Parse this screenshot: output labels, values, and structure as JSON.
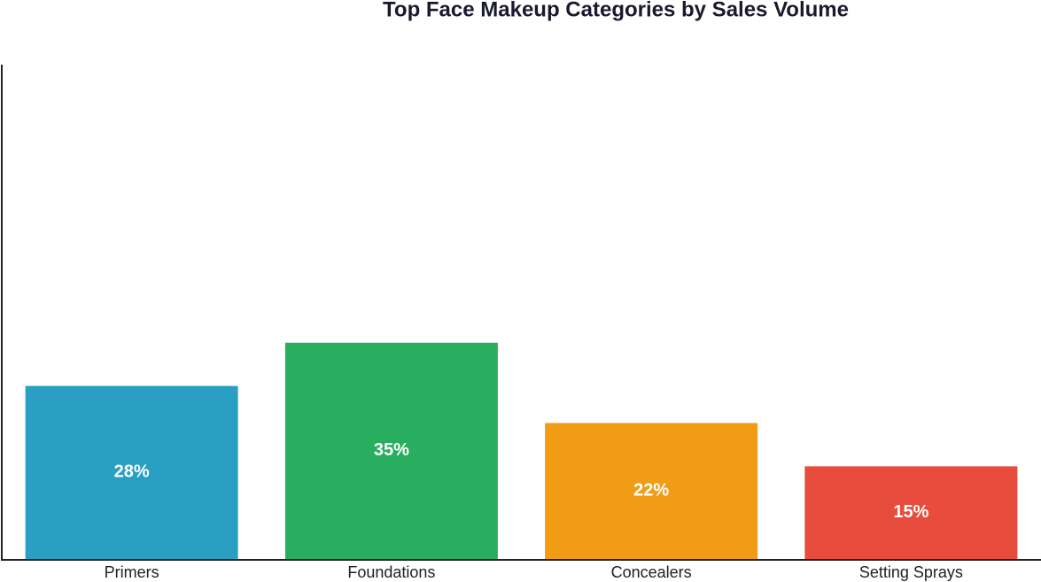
{
  "chart_data": {
    "type": "bar",
    "title": "Top Face Makeup Categories by Sales Volume",
    "categories": [
      "Primers",
      "Foundations",
      "Concealers",
      "Setting Sprays"
    ],
    "values": [
      28,
      35,
      22,
      15
    ],
    "value_labels": [
      "28%",
      "35%",
      "22%",
      "15%"
    ],
    "colors": [
      "#2b9fc3",
      "#29ae60",
      "#f19c15",
      "#e74c3c"
    ],
    "ylim": [
      0,
      80
    ]
  }
}
